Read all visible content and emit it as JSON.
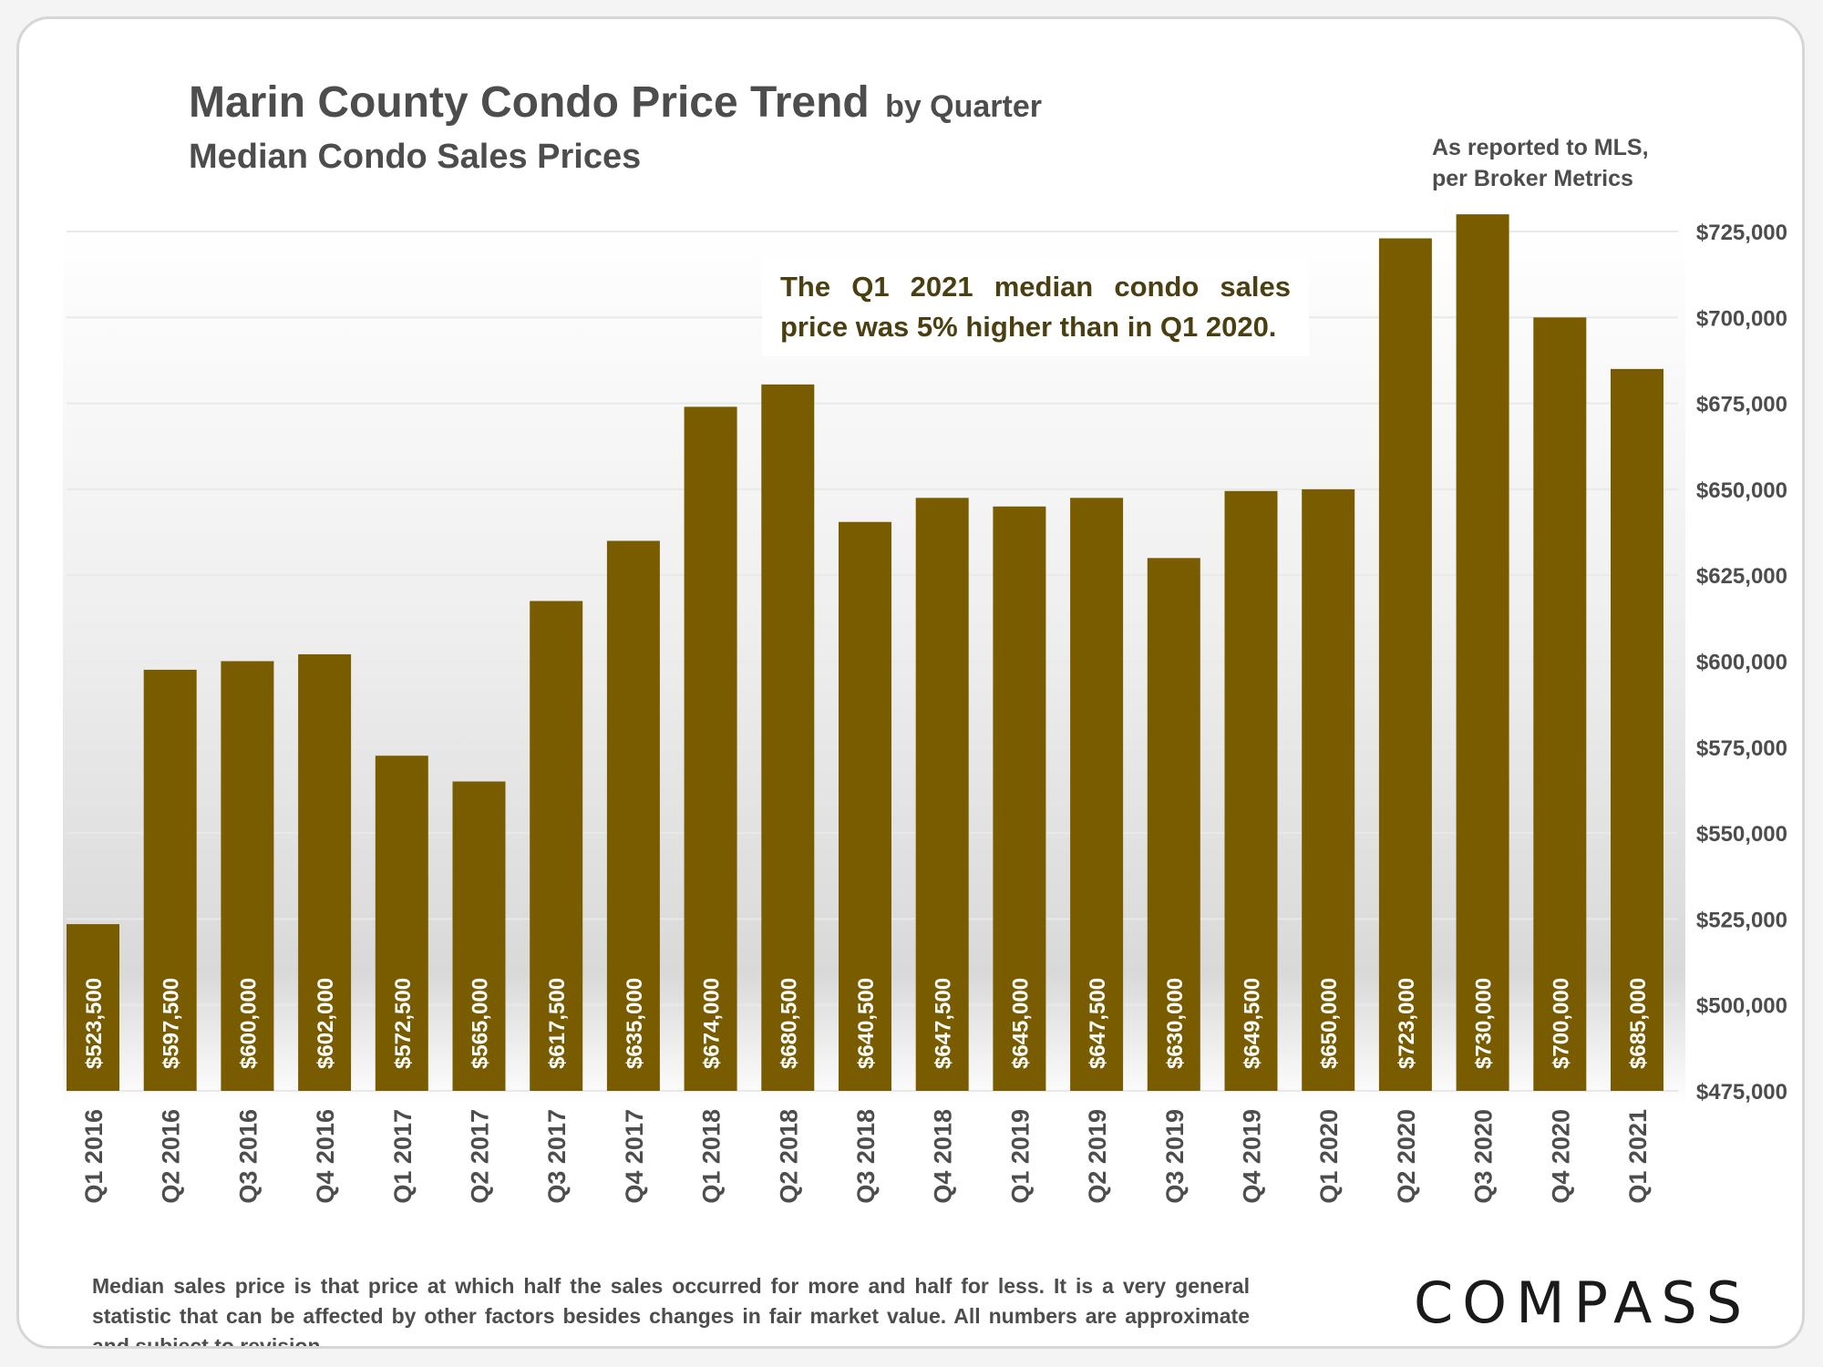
{
  "header": {
    "title": "Marin County Condo Price Trend",
    "title_suffix": "by Quarter",
    "subtitle": "Median Condo Sales Prices",
    "source_line1": "As reported to MLS,",
    "source_line2": "per Broker Metrics"
  },
  "callout": "The Q1 2021 median condo sales price was 5% higher than in Q1 2020.",
  "footnote": "Median sales price is that price at which half the sales occurred for more and half for less. It is a very general statistic that can be affected by other factors besides changes in fair market value. All numbers are approximate and subject to revision.",
  "logo": "COMPASS",
  "colors": {
    "bar": "#7a5c00",
    "bar_label": "#ffffff",
    "axis_text": "#4d4d4d",
    "grid": "#e9e9e9"
  },
  "chart_data": {
    "type": "bar",
    "categories": [
      "Q1 2016",
      "Q2 2016",
      "Q3 2016",
      "Q4 2016",
      "Q1 2017",
      "Q2 2017",
      "Q3 2017",
      "Q4 2017",
      "Q1 2018",
      "Q2 2018",
      "Q3 2018",
      "Q4 2018",
      "Q1 2019",
      "Q2 2019",
      "Q3 2019",
      "Q4 2019",
      "Q1 2020",
      "Q2 2020",
      "Q3 2020",
      "Q4 2020",
      "Q1 2021"
    ],
    "values": [
      523500,
      597500,
      600000,
      602000,
      572500,
      565000,
      617500,
      635000,
      674000,
      680500,
      640500,
      647500,
      645000,
      647500,
      630000,
      649500,
      650000,
      723000,
      730000,
      700000,
      685000
    ],
    "value_labels": [
      "$523,500",
      "$597,500",
      "$600,000",
      "$602,000",
      "$572,500",
      "$565,000",
      "$617,500",
      "$635,000",
      "$674,000",
      "$680,500",
      "$640,500",
      "$647,500",
      "$645,000",
      "$647,500",
      "$630,000",
      "$649,500",
      "$650,000",
      "$723,000",
      "$730,000",
      "$700,000",
      "$685,000"
    ],
    "ylim": [
      475000,
      725000
    ],
    "y_ticks": [
      475000,
      500000,
      525000,
      550000,
      575000,
      600000,
      625000,
      650000,
      675000,
      700000,
      725000
    ],
    "y_tick_labels": [
      "$475,000",
      "$500,000",
      "$525,000",
      "$550,000",
      "$575,000",
      "$600,000",
      "$625,000",
      "$650,000",
      "$675,000",
      "$700,000",
      "$725,000"
    ],
    "y_axis_side": "right",
    "grid": true,
    "title": "Marin County Condo Price Trend by Quarter",
    "xlabel": "",
    "ylabel": ""
  }
}
